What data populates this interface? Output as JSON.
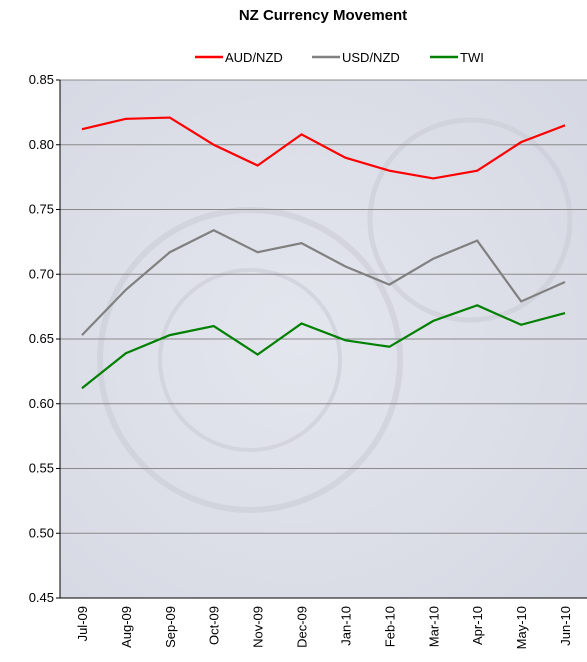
{
  "chart_data": {
    "type": "line",
    "title": "NZ Currency Movement",
    "categories": [
      "Jul-09",
      "Aug-09",
      "Sep-09",
      "Oct-09",
      "Nov-09",
      "Dec-09",
      "Jan-10",
      "Feb-10",
      "Mar-10",
      "Apr-10",
      "May-10",
      "Jun-10"
    ],
    "series": [
      {
        "name": "AUD/NZD",
        "color": "#ff0000",
        "values": [
          0.812,
          0.82,
          0.821,
          0.8,
          0.784,
          0.808,
          0.79,
          0.78,
          0.774,
          0.78,
          0.802,
          0.815
        ]
      },
      {
        "name": "USD/NZD",
        "color": "#808080",
        "values": [
          0.653,
          0.688,
          0.717,
          0.734,
          0.717,
          0.724,
          0.706,
          0.692,
          0.712,
          0.726,
          0.679,
          0.694
        ]
      },
      {
        "name": "TWI",
        "color": "#008000",
        "values": [
          0.612,
          0.639,
          0.653,
          0.66,
          0.638,
          0.662,
          0.649,
          0.644,
          0.664,
          0.676,
          0.661,
          0.67
        ]
      }
    ],
    "ylim": [
      0.45,
      0.85
    ],
    "yticks": [
      0.45,
      {
        "value": 0.5,
        "label": "0.50"
      },
      0.55,
      {
        "value": 0.6,
        "label": "0.60"
      },
      0.65,
      {
        "value": 0.7,
        "label": "0.70"
      },
      0.75,
      {
        "value": 0.8,
        "label": "0.80"
      },
      0.85
    ],
    "grid": true,
    "legend": "top"
  }
}
